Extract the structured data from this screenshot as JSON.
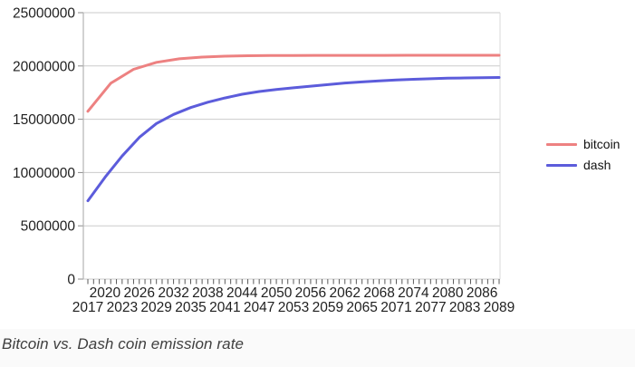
{
  "caption": "Bitcoin vs. Dash coin emission rate",
  "legend": [
    {
      "label": "bitcoin",
      "color": "#ed8181"
    },
    {
      "label": "dash",
      "color": "#5c5cdb"
    }
  ],
  "colors": {
    "background": "#ffffff",
    "grid": "#cbcbcb",
    "axis": "#b5b5b5",
    "minor_tick": "#5a5a5a",
    "axis_text": "#1f1f1f",
    "caption_bg": "#fafafa",
    "caption_text": "#3f3f3f",
    "bitcoin_line": "#ed8181",
    "dash_line": "#5c5cdb"
  },
  "chart_data": {
    "type": "line",
    "title": "",
    "xlabel": "",
    "ylabel": "",
    "x_range": [
      2017,
      2089
    ],
    "ylim": [
      0,
      25000000
    ],
    "y_ticks": [
      0,
      5000000,
      10000000,
      15000000,
      20000000,
      25000000
    ],
    "x_minor_ticks": {
      "start": 2017,
      "end": 2089,
      "step": 1
    },
    "x_label_rows": [
      [
        2020,
        2026,
        2032,
        2038,
        2044,
        2050,
        2056,
        2062,
        2068,
        2074,
        2080,
        2086
      ],
      [
        2017,
        2023,
        2029,
        2035,
        2041,
        2047,
        2053,
        2059,
        2065,
        2071,
        2077,
        2083,
        2089
      ]
    ],
    "grid": "horizontal",
    "legend_position": "right",
    "series": [
      {
        "name": "bitcoin",
        "color": "#ed8181",
        "points": [
          [
            2017,
            15750000
          ],
          [
            2021,
            18375000
          ],
          [
            2025,
            19688000
          ],
          [
            2029,
            20344000
          ],
          [
            2033,
            20672000
          ],
          [
            2037,
            20836000
          ],
          [
            2041,
            20918000
          ],
          [
            2045,
            20959000
          ],
          [
            2049,
            20979000
          ],
          [
            2053,
            20990000
          ],
          [
            2057,
            20995000
          ],
          [
            2061,
            20997000
          ],
          [
            2065,
            20999000
          ],
          [
            2069,
            20999000
          ],
          [
            2073,
            21000000
          ],
          [
            2077,
            21000000
          ],
          [
            2081,
            21000000
          ],
          [
            2085,
            21000000
          ],
          [
            2089,
            21000000
          ]
        ]
      },
      {
        "name": "dash",
        "color": "#5c5cdb",
        "points": [
          [
            2017,
            7350000
          ],
          [
            2020,
            9550000
          ],
          [
            2023,
            11550000
          ],
          [
            2026,
            13300000
          ],
          [
            2029,
            14600000
          ],
          [
            2032,
            15450000
          ],
          [
            2035,
            16100000
          ],
          [
            2038,
            16600000
          ],
          [
            2041,
            17000000
          ],
          [
            2044,
            17350000
          ],
          [
            2047,
            17600000
          ],
          [
            2050,
            17800000
          ],
          [
            2053,
            17950000
          ],
          [
            2056,
            18100000
          ],
          [
            2059,
            18250000
          ],
          [
            2062,
            18400000
          ],
          [
            2065,
            18500000
          ],
          [
            2068,
            18600000
          ],
          [
            2071,
            18680000
          ],
          [
            2074,
            18750000
          ],
          [
            2077,
            18800000
          ],
          [
            2080,
            18850000
          ],
          [
            2083,
            18880000
          ],
          [
            2086,
            18900000
          ],
          [
            2089,
            18920000
          ]
        ]
      }
    ]
  }
}
